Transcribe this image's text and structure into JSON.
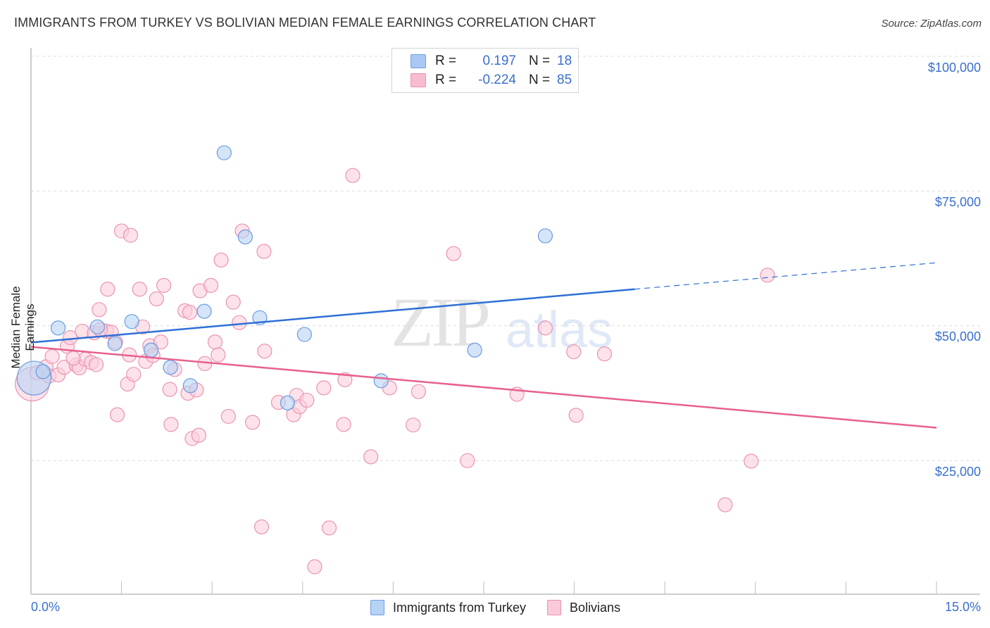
{
  "header": {
    "title": "IMMIGRANTS FROM TURKEY VS BOLIVIAN MEDIAN FEMALE EARNINGS CORRELATION CHART",
    "source": "Source: ZipAtlas.com"
  },
  "watermark": {
    "zip": "ZIP",
    "atlas": "atlas"
  },
  "legend_top": {
    "rows": [
      {
        "r_label": "R =",
        "r_value": "0.197",
        "n_label": "N =",
        "n_value": "18",
        "color": "#a9c8f3"
      },
      {
        "r_label": "R =",
        "r_value": "-0.224",
        "n_label": "N =",
        "n_value": "85",
        "color": "#f7bcd0"
      }
    ]
  },
  "legend_bottom": {
    "items": [
      {
        "label": "Immigrants from Turkey",
        "color": "#b6d2f5",
        "border": "#6f9fe0"
      },
      {
        "label": "Bolivians",
        "color": "#fbc9d8",
        "border": "#e892b0"
      }
    ]
  },
  "axes": {
    "ylabel": "Median Female Earnings",
    "yticks": [
      "$100,000",
      "$75,000",
      "$50,000",
      "$25,000"
    ],
    "xtick_left": "0.0%",
    "xtick_right": "15.0%"
  },
  "colors": {
    "blue_line": "#2f6fd6",
    "pink_line": "#e8608f",
    "blue_fill": "#b8d3f4",
    "blue_stroke": "#6a9ae0",
    "pink_fill": "#fbcfdc",
    "pink_stroke": "#e994b2",
    "tick_text": "#3b6fcf"
  },
  "chart_data": {
    "type": "scatter",
    "title": "IMMIGRANTS FROM TURKEY VS BOLIVIAN MEDIAN FEMALE EARNINGS CORRELATION CHART",
    "xlabel": "",
    "ylabel": "Median Female Earnings",
    "xlim": [
      0,
      15
    ],
    "ylim": [
      0,
      102500
    ],
    "x_unit": "%",
    "yticks": [
      25000,
      50000,
      75000,
      100000
    ],
    "grid": true,
    "legend_position": "bottom",
    "series": [
      {
        "name": "Immigrants from Turkey",
        "R": 0.197,
        "N": 18,
        "trend": {
          "x0": 0,
          "y0": 46900,
          "x1": 10.0,
          "y1": 56800,
          "dashed_to_x": 15.0,
          "dashed_to_y": 61700
        },
        "points": [
          {
            "x": 0.05,
            "y": 40300,
            "size": "large"
          },
          {
            "x": 0.45,
            "y": 49600
          },
          {
            "x": 1.1,
            "y": 49800
          },
          {
            "x": 1.39,
            "y": 46700
          },
          {
            "x": 1.67,
            "y": 50800
          },
          {
            "x": 1.99,
            "y": 45500
          },
          {
            "x": 2.31,
            "y": 42300
          },
          {
            "x": 2.64,
            "y": 38900
          },
          {
            "x": 2.87,
            "y": 52700
          },
          {
            "x": 3.2,
            "y": 82100
          },
          {
            "x": 3.55,
            "y": 66500
          },
          {
            "x": 3.79,
            "y": 51500
          },
          {
            "x": 4.25,
            "y": 35700
          },
          {
            "x": 4.53,
            "y": 48400
          },
          {
            "x": 5.8,
            "y": 39800
          },
          {
            "x": 7.35,
            "y": 45500
          },
          {
            "x": 8.52,
            "y": 66700
          },
          {
            "x": 0.2,
            "y": 41500
          }
        ]
      },
      {
        "name": "Bolivians",
        "R": -0.224,
        "N": 85,
        "trend": {
          "x0": 0,
          "y0": 46100,
          "x1": 15.0,
          "y1": 31100
        },
        "points": [
          {
            "x": 0.02,
            "y": 39200,
            "size": "large"
          },
          {
            "x": 0.1,
            "y": 41300
          },
          {
            "x": 0.25,
            "y": 42400
          },
          {
            "x": 0.3,
            "y": 40700
          },
          {
            "x": 0.35,
            "y": 44300
          },
          {
            "x": 0.45,
            "y": 40900
          },
          {
            "x": 0.55,
            "y": 42300
          },
          {
            "x": 0.6,
            "y": 46200
          },
          {
            "x": 0.65,
            "y": 47800
          },
          {
            "x": 0.75,
            "y": 42700
          },
          {
            "x": 0.8,
            "y": 42200
          },
          {
            "x": 0.85,
            "y": 49000
          },
          {
            "x": 0.9,
            "y": 43800
          },
          {
            "x": 1.0,
            "y": 43200
          },
          {
            "x": 1.05,
            "y": 48700
          },
          {
            "x": 1.08,
            "y": 42800
          },
          {
            "x": 1.13,
            "y": 53000
          },
          {
            "x": 1.25,
            "y": 49000
          },
          {
            "x": 1.27,
            "y": 56800
          },
          {
            "x": 1.33,
            "y": 48800
          },
          {
            "x": 1.4,
            "y": 47000
          },
          {
            "x": 1.43,
            "y": 33500
          },
          {
            "x": 1.5,
            "y": 67600
          },
          {
            "x": 1.6,
            "y": 39200
          },
          {
            "x": 1.63,
            "y": 44600
          },
          {
            "x": 1.65,
            "y": 66800
          },
          {
            "x": 1.7,
            "y": 41000
          },
          {
            "x": 1.8,
            "y": 56800
          },
          {
            "x": 1.85,
            "y": 49800
          },
          {
            "x": 1.9,
            "y": 43400
          },
          {
            "x": 1.97,
            "y": 46300
          },
          {
            "x": 2.02,
            "y": 44500
          },
          {
            "x": 2.08,
            "y": 55000
          },
          {
            "x": 2.15,
            "y": 47000
          },
          {
            "x": 2.2,
            "y": 57500
          },
          {
            "x": 2.3,
            "y": 38200
          },
          {
            "x": 2.32,
            "y": 31700
          },
          {
            "x": 2.38,
            "y": 41900
          },
          {
            "x": 2.55,
            "y": 52800
          },
          {
            "x": 2.6,
            "y": 37500
          },
          {
            "x": 2.63,
            "y": 52500
          },
          {
            "x": 2.67,
            "y": 29100
          },
          {
            "x": 2.74,
            "y": 38100
          },
          {
            "x": 2.78,
            "y": 29700
          },
          {
            "x": 2.8,
            "y": 56500
          },
          {
            "x": 2.88,
            "y": 43000
          },
          {
            "x": 2.98,
            "y": 57500
          },
          {
            "x": 3.05,
            "y": 47000
          },
          {
            "x": 3.1,
            "y": 44600
          },
          {
            "x": 3.15,
            "y": 62200
          },
          {
            "x": 3.27,
            "y": 33200
          },
          {
            "x": 3.35,
            "y": 54400
          },
          {
            "x": 3.45,
            "y": 50600
          },
          {
            "x": 3.5,
            "y": 67600
          },
          {
            "x": 3.67,
            "y": 32100
          },
          {
            "x": 3.82,
            "y": 12700
          },
          {
            "x": 3.86,
            "y": 63800
          },
          {
            "x": 3.87,
            "y": 45300
          },
          {
            "x": 4.1,
            "y": 35800
          },
          {
            "x": 4.35,
            "y": 33500
          },
          {
            "x": 4.4,
            "y": 37100
          },
          {
            "x": 4.45,
            "y": 35000
          },
          {
            "x": 4.57,
            "y": 36200
          },
          {
            "x": 4.7,
            "y": 5300
          },
          {
            "x": 4.85,
            "y": 38500
          },
          {
            "x": 4.94,
            "y": 12500
          },
          {
            "x": 5.18,
            "y": 31700
          },
          {
            "x": 5.2,
            "y": 40000
          },
          {
            "x": 5.33,
            "y": 77900
          },
          {
            "x": 5.63,
            "y": 25700
          },
          {
            "x": 5.94,
            "y": 38500
          },
          {
            "x": 6.33,
            "y": 31600
          },
          {
            "x": 6.42,
            "y": 37800
          },
          {
            "x": 7.0,
            "y": 63400
          },
          {
            "x": 7.23,
            "y": 25000
          },
          {
            "x": 8.05,
            "y": 37300
          },
          {
            "x": 8.52,
            "y": 49600
          },
          {
            "x": 8.99,
            "y": 45200
          },
          {
            "x": 9.03,
            "y": 33400
          },
          {
            "x": 9.5,
            "y": 44800
          },
          {
            "x": 11.5,
            "y": 16800
          },
          {
            "x": 11.93,
            "y": 24900
          },
          {
            "x": 12.2,
            "y": 59400
          },
          {
            "x": 1.15,
            "y": 49300
          },
          {
            "x": 0.7,
            "y": 44000
          }
        ]
      }
    ]
  }
}
